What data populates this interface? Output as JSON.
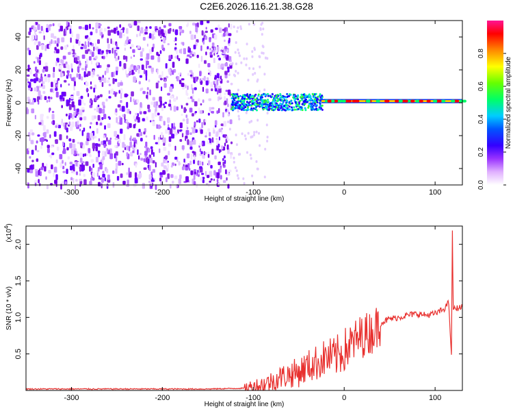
{
  "title": "C2E6.2026.116.21.38.G28",
  "chart_data": [
    {
      "type": "heatmap",
      "title": "C2E6.2026.116.21.38.G28",
      "xlabel": "Height of straight line (km)",
      "ylabel": "Frequency (Hz)",
      "xlim": [
        -350,
        130
      ],
      "ylim": [
        -50,
        50
      ],
      "xticks": [
        -300,
        -200,
        -100,
        0,
        100
      ],
      "xtick_labels": [
        "-300",
        "-200",
        "-100",
        "0",
        "100"
      ],
      "yticks": [
        40,
        20,
        0,
        -20,
        -40
      ],
      "ytick_labels": [
        "40",
        "20",
        "0",
        "-20",
        "-40"
      ],
      "colorbar": {
        "label": "Normalized spectral amplitude",
        "range": [
          0,
          1
        ],
        "ticks": [
          0.0,
          0.2,
          0.4,
          0.6,
          0.8
        ],
        "tick_labels": [
          "0.0",
          "0.2",
          "0.4",
          "0.6",
          "0.8"
        ],
        "colormap": [
          "#ffffff",
          "#cc66ff",
          "#7700ff",
          "#0000ff",
          "#00ccff",
          "#00ff66",
          "#66ff00",
          "#ffff00",
          "#ff8800",
          "#ff0000",
          "#ff1493"
        ]
      },
      "features": [
        {
          "description": "broadband noise",
          "x_range": [
            -350,
            -125
          ],
          "y_range": [
            -50,
            50
          ]
        },
        {
          "description": "signal band",
          "x_range": [
            -125,
            -25
          ],
          "y_center": 1
        },
        {
          "description": "narrow tone",
          "x_range": [
            -25,
            130
          ],
          "y_center": 1
        }
      ]
    },
    {
      "type": "line",
      "xlabel": "Height of straight line (km)",
      "ylabel": "SNR (10 * v/v)",
      "yscale_label": "(x10",
      "yscale_exponent": "4",
      "xlim": [
        -350,
        130
      ],
      "ylim": [
        0,
        2.25
      ],
      "xticks": [
        -300,
        -200,
        -100,
        0,
        100
      ],
      "xtick_labels": [
        "-300",
        "-200",
        "-100",
        "0",
        "100"
      ],
      "yticks": [
        0.5,
        1.0,
        1.5,
        2.0
      ],
      "ytick_labels": [
        "0.5",
        "1.0",
        "1.5",
        "2.0"
      ],
      "series": [
        {
          "color": "#e8302e",
          "x": [
            -350,
            -300,
            -250,
            -200,
            -150,
            -110,
            -100,
            -90,
            -80,
            -70,
            -60,
            -50,
            -40,
            -30,
            -20,
            -10,
            0,
            10,
            20,
            30,
            40,
            50,
            60,
            70,
            80,
            90,
            100,
            105,
            110,
            115,
            118,
            119,
            120,
            122,
            125,
            130
          ],
          "y": [
            0.02,
            0.02,
            0.02,
            0.02,
            0.02,
            0.03,
            0.05,
            0.08,
            0.12,
            0.18,
            0.22,
            0.25,
            0.33,
            0.38,
            0.45,
            0.45,
            0.55,
            0.65,
            0.75,
            0.8,
            0.92,
            0.98,
            1.0,
            1.03,
            1.05,
            1.03,
            1.05,
            1.08,
            1.12,
            1.2,
            0.45,
            2.2,
            1.1,
            1.12,
            1.13,
            1.14
          ]
        }
      ]
    }
  ]
}
